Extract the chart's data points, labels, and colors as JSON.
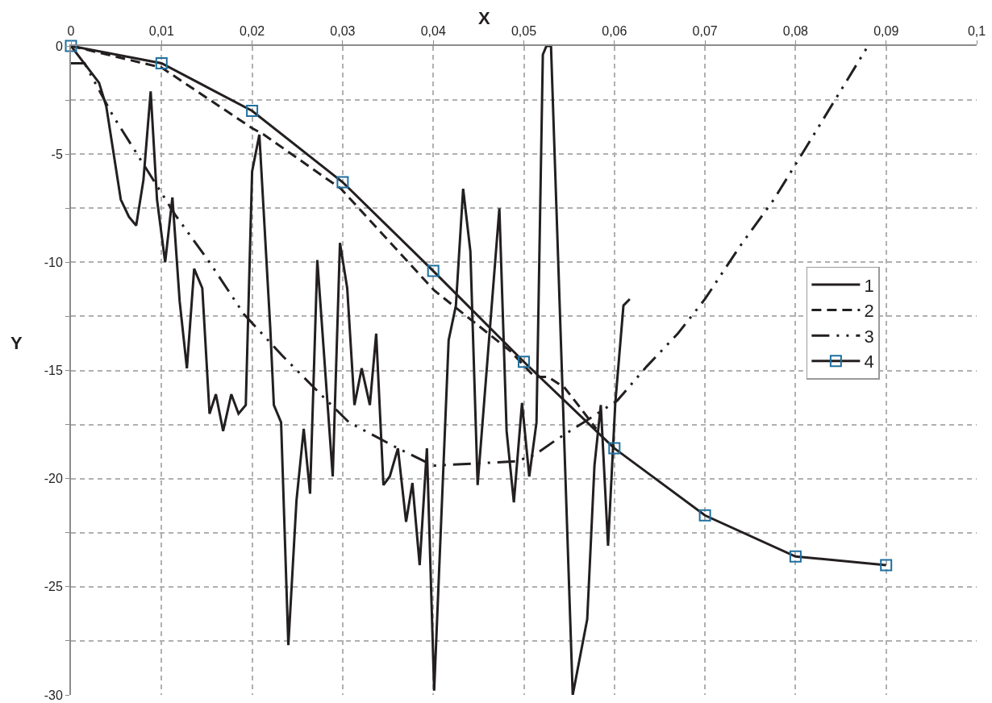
{
  "chart_data": {
    "type": "line",
    "xlabel": "X",
    "ylabel": "Y",
    "xlim": [
      0,
      0.1
    ],
    "ylim": [
      -30,
      0
    ],
    "xticks": [
      0,
      {
        "value": 0.01,
        "label": "0,01"
      },
      {
        "value": 0.02,
        "label": "0,02"
      },
      {
        "value": 0.03,
        "label": "0,03"
      },
      {
        "value": 0.04,
        "label": "0,04"
      },
      {
        "value": 0.05,
        "label": "0,05"
      },
      {
        "value": 0.06,
        "label": "0,06"
      },
      {
        "value": 0.07,
        "label": "0,07"
      },
      {
        "value": 0.08,
        "label": "0,08"
      },
      {
        "value": 0.09,
        "label": "0,09"
      },
      {
        "value": 0.1,
        "label": "0,1"
      }
    ],
    "yticks": [
      -30,
      {
        "value": -27.5,
        "label": null
      },
      -25,
      {
        "value": -22.5,
        "label": null
      },
      -20,
      {
        "value": -17.5,
        "label": null
      },
      -15,
      {
        "value": -12.5,
        "label": null
      },
      -10,
      {
        "value": -7.5,
        "label": null
      },
      -5,
      {
        "value": -2.5,
        "label": null
      },
      0
    ],
    "grid": true,
    "legend": "right",
    "series": [
      {
        "name": "1",
        "color": "#231f20",
        "line_style": "solid",
        "marker": "none",
        "x": [
          0,
          0.0031,
          0.0039,
          0.0055,
          0.0064,
          0.0072,
          0.008,
          0.0088,
          0.0095,
          0.0104,
          0.0112,
          0.012,
          0.0128,
          0.0136,
          0.0145,
          0.0153,
          0.016,
          0.0168,
          0.0177,
          0.0185,
          0.0193,
          0.02,
          0.0208,
          0.022,
          0.0224,
          0.0232,
          0.024,
          0.0249,
          0.0257,
          0.0264,
          0.0272,
          0.0289,
          0.0297,
          0.0305,
          0.0313,
          0.0321,
          0.033,
          0.0337,
          0.0345,
          0.0352,
          0.0361,
          0.037,
          0.0377,
          0.0385,
          0.0393,
          0.0401,
          0.0409,
          0.0417,
          0.0425,
          0.0433,
          0.0441,
          0.0449,
          0.0473,
          0.0481,
          0.0489,
          0.0498,
          0.0506,
          0.0514,
          0.0521,
          0.0525,
          0.053,
          0.0554,
          0.057,
          0.0578,
          0.0585,
          0.0593,
          0.0601,
          0.061,
          0.0617
        ],
        "values": [
          0,
          -1.7,
          -2.8,
          -7.1,
          -7.9,
          -8.3,
          -6.2,
          -2.1,
          -7.1,
          -10,
          -7,
          -11.8,
          -14.9,
          -10.3,
          -11.2,
          -17,
          -16.1,
          -17.8,
          -16.1,
          -17,
          -16.6,
          -5.8,
          -4.1,
          -13,
          -16.6,
          -17.4,
          -27.7,
          -21,
          -17.7,
          -20.7,
          -9.9,
          -19.9,
          -9.1,
          -11.2,
          -16.6,
          -14.9,
          -16.6,
          -13.3,
          -20.3,
          -19.9,
          -18.6,
          -22,
          -20.2,
          -24,
          -18.6,
          -29.8,
          -21.7,
          -13.6,
          -12,
          -6.6,
          -9.5,
          -20.3,
          -7.5,
          -17.8,
          -21.1,
          -16.5,
          -19.9,
          -17.4,
          -0.4,
          0,
          0,
          -30,
          -26.5,
          -19.4,
          -16.6,
          -23.1,
          -16.5,
          -12,
          -11.7
        ]
      },
      {
        "name": "2",
        "color": "#231f20",
        "line_style": "dashed",
        "marker": "none",
        "x": [
          0,
          0.01,
          0.02,
          0.0213,
          0.0298,
          0.0401,
          0.0485,
          0.0512,
          0.0527,
          0.0545,
          0.056,
          0.058
        ],
        "values": [
          0,
          -1,
          -3.8,
          -4.1,
          -6.6,
          -11.3,
          -14.1,
          -15.3,
          -15.3,
          -15.8,
          -16.6,
          -17.7
        ]
      },
      {
        "name": "3",
        "color": "#231f20",
        "line_style": "dashdot",
        "marker": "none",
        "x": [
          0,
          0.0015,
          0.0046,
          0.0082,
          0.0115,
          0.0153,
          0.0191,
          0.0233,
          0.0278,
          0.0307,
          0.0361,
          0.04,
          0.0447,
          0.0492,
          0.0512,
          0.0536,
          0.0566,
          0.0603,
          0.0636,
          0.067,
          0.07,
          0.0738,
          0.0776,
          0.081,
          0.0845,
          0.088
        ],
        "values": [
          -0.8,
          -0.8,
          -3.2,
          -5.6,
          -7.8,
          -10,
          -12.4,
          -14.3,
          -16.2,
          -17.4,
          -18.6,
          -19.4,
          -19.3,
          -19.2,
          -18.9,
          -18.2,
          -17.4,
          -16.4,
          -14.8,
          -13.3,
          -11.7,
          -9.3,
          -7.1,
          -4.8,
          -2.4,
          0
        ]
      },
      {
        "name": "4",
        "color": "#231f20",
        "line_style": "solid",
        "marker": "square",
        "colors": [
          "#1f6f9f",
          "#1f6f9f",
          "#1f6f9f",
          "#1f6f9f",
          "#1f6f9f",
          "#1f6f9f",
          "#1f6f9f",
          "#1f6f9f",
          "#1f6f9f",
          "#1f6f9f"
        ],
        "x": [
          0,
          0.01,
          0.02,
          0.03,
          0.04,
          0.05,
          0.06,
          0.07,
          0.08,
          0.09
        ],
        "values": [
          0,
          -0.8,
          -3,
          -6.3,
          -10.4,
          -14.6,
          -18.6,
          -21.7,
          -23.6,
          -24
        ]
      }
    ]
  }
}
